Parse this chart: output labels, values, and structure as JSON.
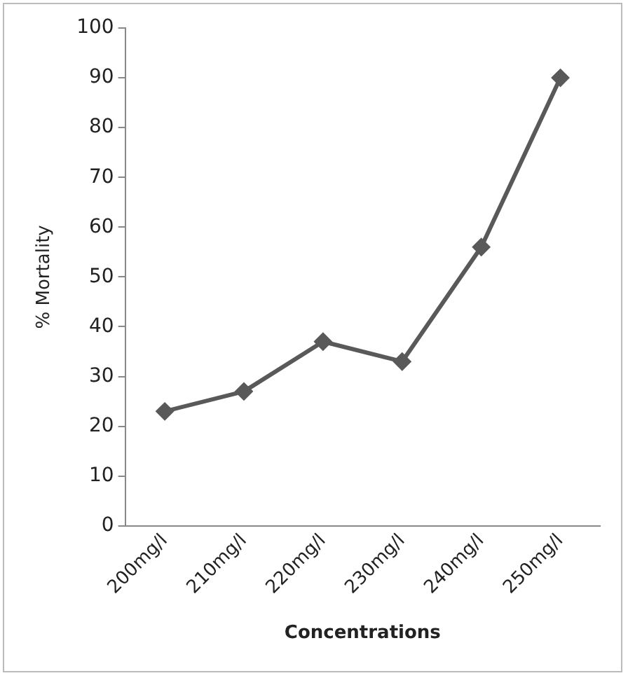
{
  "chart_data": {
    "type": "line",
    "xlabel": "Concentrations",
    "ylabel": "% Mortality",
    "categories": [
      "200mg/l",
      "210mg/l",
      "220mg/l",
      "230mg/l",
      "240mg/l",
      "250mg/l"
    ],
    "series": [
      {
        "color": "#595959",
        "values": [
          23,
          27,
          37,
          33,
          56,
          90
        ]
      }
    ],
    "ylim": [
      0,
      100
    ],
    "yticks": [
      0,
      10,
      20,
      30,
      40,
      50,
      60,
      70,
      80,
      90,
      100
    ],
    "grid": false,
    "legend": false,
    "marker": "diamond",
    "line_style": "solid"
  }
}
